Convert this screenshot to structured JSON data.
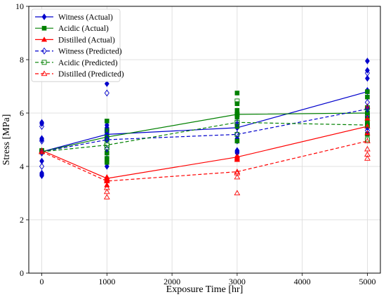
{
  "chart_data": {
    "type": "scatter",
    "xlabel": "Exposure Time [hr]",
    "ylabel": "Stress [MPa]",
    "xlim": [
      -200,
      5200
    ],
    "ylim": [
      0,
      10
    ],
    "xticks": [
      0,
      1000,
      2000,
      3000,
      4000,
      5000
    ],
    "yticks": [
      0,
      2,
      4,
      6,
      8,
      10
    ],
    "grid": true,
    "legend_position": "top-left",
    "series": [
      {
        "name": "Witness (Actual)",
        "color": "#0000cc",
        "marker": "diamond-filled",
        "line": "solid",
        "mean_x": [
          0,
          1000,
          3000,
          5000
        ],
        "mean_y": [
          4.55,
          5.2,
          5.45,
          6.8
        ],
        "points": [
          [
            0,
            5.65
          ],
          [
            0,
            5.6
          ],
          [
            0,
            5.05
          ],
          [
            0,
            5.0
          ],
          [
            0,
            4.55
          ],
          [
            0,
            4.2
          ],
          [
            0,
            3.75
          ],
          [
            0,
            3.7
          ],
          [
            0,
            3.65
          ],
          [
            1000,
            7.1
          ],
          [
            1000,
            5.55
          ],
          [
            1000,
            5.45
          ],
          [
            1000,
            5.25
          ],
          [
            1000,
            5.1
          ],
          [
            1000,
            4.55
          ],
          [
            1000,
            4.3
          ],
          [
            1000,
            4.2
          ],
          [
            1000,
            4.0
          ],
          [
            3000,
            5.85
          ],
          [
            3000,
            5.55
          ],
          [
            3000,
            5.45
          ],
          [
            3000,
            5.05
          ],
          [
            3000,
            4.95
          ],
          [
            3000,
            4.6
          ],
          [
            3000,
            4.5
          ],
          [
            5000,
            7.95
          ],
          [
            5000,
            7.6
          ],
          [
            5000,
            7.3
          ],
          [
            5000,
            6.85
          ],
          [
            5000,
            6.2
          ],
          [
            5000,
            6.0
          ],
          [
            5000,
            5.85
          ],
          [
            5000,
            5.45
          ]
        ]
      },
      {
        "name": "Acidic (Actual)",
        "color": "#008000",
        "marker": "square-filled",
        "line": "solid",
        "mean_x": [
          0,
          1000,
          3000,
          5000
        ],
        "mean_y": [
          4.55,
          5.1,
          5.95,
          6.0
        ],
        "points": [
          [
            0,
            4.6
          ],
          [
            0,
            4.55
          ],
          [
            1000,
            5.7
          ],
          [
            1000,
            5.35
          ],
          [
            1000,
            5.0
          ],
          [
            1000,
            4.5
          ],
          [
            1000,
            4.3
          ],
          [
            1000,
            4.15
          ],
          [
            3000,
            6.75
          ],
          [
            3000,
            6.35
          ],
          [
            3000,
            6.1
          ],
          [
            3000,
            5.85
          ],
          [
            3000,
            5.5
          ],
          [
            3000,
            4.95
          ],
          [
            5000,
            6.8
          ],
          [
            5000,
            6.6
          ],
          [
            5000,
            6.0
          ],
          [
            5000,
            5.75
          ],
          [
            5000,
            5.6
          ],
          [
            5000,
            5.2
          ]
        ]
      },
      {
        "name": "Distilled (Actual)",
        "color": "#ff0000",
        "marker": "triangle-filled",
        "line": "solid",
        "mean_x": [
          0,
          1000,
          3000,
          5000
        ],
        "mean_y": [
          4.6,
          3.55,
          4.35,
          5.5
        ],
        "points": [
          [
            0,
            4.6
          ],
          [
            0,
            4.55
          ],
          [
            1000,
            3.6
          ],
          [
            1000,
            3.5
          ],
          [
            1000,
            3.45
          ],
          [
            1000,
            3.3
          ],
          [
            3000,
            4.4
          ],
          [
            3000,
            4.3
          ],
          [
            3000,
            4.25
          ],
          [
            5000,
            6.25
          ],
          [
            5000,
            5.8
          ],
          [
            5000,
            5.5
          ],
          [
            5000,
            5.25
          ]
        ]
      },
      {
        "name": "Witness (Predicted)",
        "color": "#0000cc",
        "marker": "diamond-open",
        "line": "dashed",
        "mean_x": [
          0,
          1000,
          3000,
          5000
        ],
        "mean_y": [
          4.55,
          5.0,
          5.2,
          6.15
        ],
        "points": [
          [
            0,
            5.5
          ],
          [
            0,
            4.95
          ],
          [
            0,
            4.5
          ],
          [
            0,
            4.0
          ],
          [
            1000,
            6.75
          ],
          [
            1000,
            5.35
          ],
          [
            1000,
            5.05
          ],
          [
            1000,
            4.65
          ],
          [
            3000,
            5.6
          ],
          [
            3000,
            5.2
          ],
          [
            3000,
            4.55
          ],
          [
            5000,
            7.5
          ],
          [
            5000,
            6.4
          ],
          [
            5000,
            6.15
          ],
          [
            5000,
            5.35
          ]
        ]
      },
      {
        "name": "Acidic (Predicted)",
        "color": "#008000",
        "marker": "square-open",
        "line": "dashed",
        "mean_x": [
          0,
          1000,
          3000,
          5000
        ],
        "mean_y": [
          4.55,
          4.8,
          5.65,
          5.55
        ],
        "points": [
          [
            0,
            4.55
          ],
          [
            1000,
            4.8
          ],
          [
            1000,
            4.7
          ],
          [
            3000,
            6.45
          ],
          [
            3000,
            5.95
          ],
          [
            3000,
            5.65
          ],
          [
            3000,
            5.2
          ],
          [
            5000,
            6.2
          ],
          [
            5000,
            5.9
          ],
          [
            5000,
            5.55
          ],
          [
            5000,
            5.0
          ]
        ]
      },
      {
        "name": "Distilled (Predicted)",
        "color": "#ff0000",
        "marker": "triangle-open",
        "line": "dashed",
        "mean_x": [
          0,
          1000,
          3000,
          5000
        ],
        "mean_y": [
          4.55,
          3.45,
          3.8,
          4.95
        ],
        "points": [
          [
            0,
            4.55
          ],
          [
            1000,
            3.2
          ],
          [
            1000,
            3.05
          ],
          [
            1000,
            2.85
          ],
          [
            3000,
            3.75
          ],
          [
            3000,
            3.6
          ],
          [
            3000,
            3.0
          ],
          [
            5000,
            4.65
          ],
          [
            5000,
            4.45
          ],
          [
            5000,
            4.3
          ]
        ]
      }
    ]
  }
}
